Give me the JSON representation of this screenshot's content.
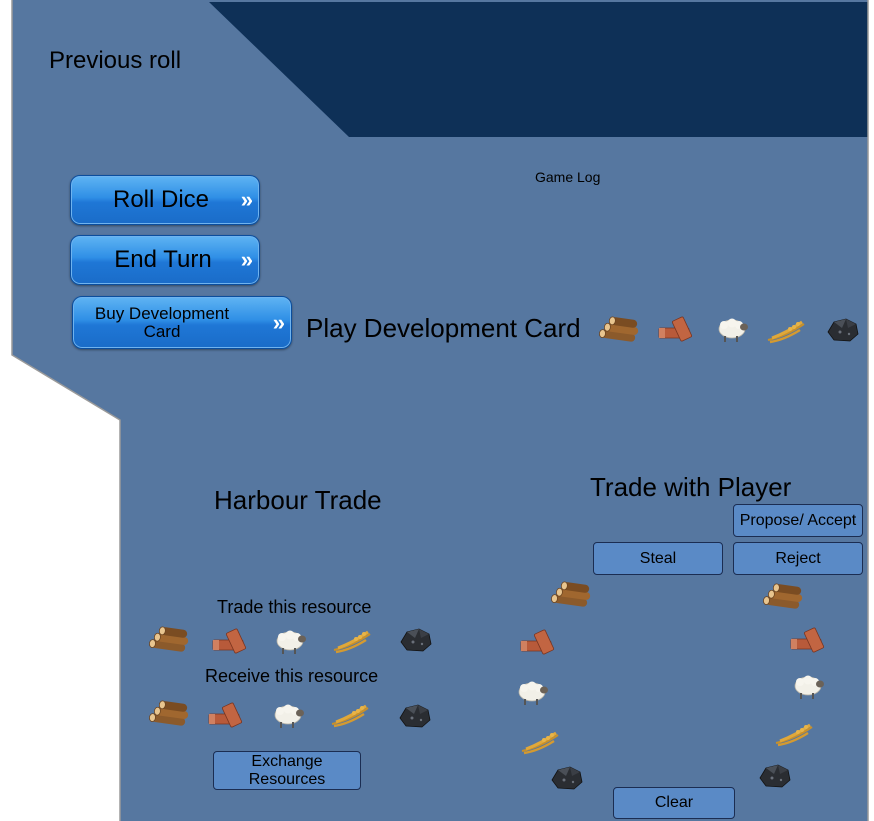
{
  "header": {
    "previous_roll_label": "Previous roll"
  },
  "game_log": {
    "title": "Game Log"
  },
  "actions": {
    "roll_dice": "Roll Dice",
    "end_turn": "End Turn",
    "buy_dev_card": "Buy Development Card",
    "chevrons": "»"
  },
  "dev_card": {
    "title": "Play Development Card"
  },
  "harbour": {
    "title": "Harbour Trade",
    "give_label": "Trade this resource",
    "receive_label": "Receive this resource",
    "exchange_button": "Exchange Resources"
  },
  "player_trade": {
    "title": "Trade with Player",
    "propose_button": "Propose/ Accept",
    "steal_button": "Steal",
    "reject_button": "Reject",
    "clear_button": "Clear"
  },
  "resources": [
    "lumber-icon",
    "brick-icon",
    "wool-icon",
    "grain-icon",
    "ore-icon"
  ],
  "colors": {
    "board": "#5677a0",
    "panel_dark": "#0e3057",
    "button_blue": "#2f8fe6",
    "flat_button": "#5a8ac6"
  }
}
